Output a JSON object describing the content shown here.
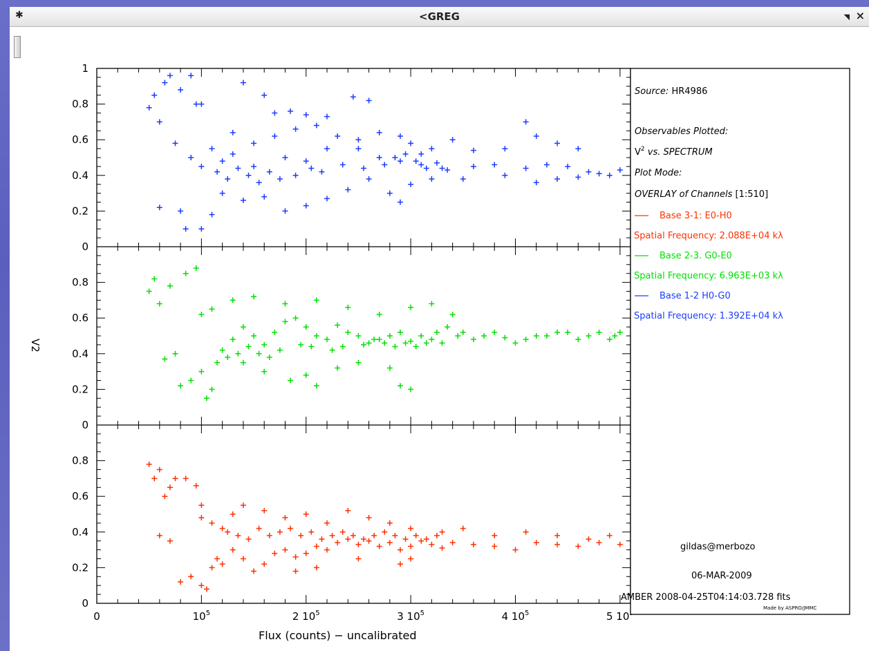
{
  "window": {
    "title": "<GREG",
    "pin_icon": "pin-icon",
    "menu_icon": "triangle-menu-icon",
    "close_icon": "close-icon"
  },
  "legend": {
    "source_label": "Source:",
    "source_value": "HR4986",
    "observables_label": "Observables Plotted:",
    "observables_v": "V",
    "observables_sup": "2",
    "observables_rest": " vs. SPECTRUM",
    "plot_mode_label": "Plot Mode:",
    "plot_mode_value": "OVERLAY of Channels",
    "channels": "[1:510]",
    "bases": [
      {
        "line": "Base 3-1: E0-H0",
        "freq": "Spatial Frequency: 2.088E+04 kλ",
        "color": "#ff3000"
      },
      {
        "line": "Base 2-3. G0-E0",
        "freq": "Spatial Frequency: 6.963E+03 kλ",
        "color": "#00e000"
      },
      {
        "line": "Base 1-2  H0-G0",
        "freq": "Spatial Frequency: 1.392E+04 kλ",
        "color": "#1a3cff"
      }
    ],
    "user": "gildas@merbozo",
    "date": "06-MAR-2009",
    "file": "AMBER 2008-04-25T04:14:03.728 fits",
    "credit": "Made by ASPRO/JMMC"
  },
  "chart_data": {
    "type": "scatter",
    "xlabel": "Flux (counts) − uncalibrated",
    "ylabel": "V2",
    "xlim": [
      0,
      510000
    ],
    "ylim": [
      0,
      1
    ],
    "x_tick_labels": [
      "0",
      "10",
      "2 10",
      "3 10",
      "4 10",
      "5 10"
    ],
    "x_tick_exponent": "5",
    "y_tick_labels": [
      "0",
      "0.2",
      "0.4",
      "0.6",
      "0.8",
      "1"
    ],
    "grid": false,
    "legend_position": "right",
    "panels": [
      {
        "name": "Base 1-2  H0-G0",
        "color": "#1a3cff",
        "points": [
          [
            50000,
            0.78
          ],
          [
            55000,
            0.85
          ],
          [
            60000,
            0.7
          ],
          [
            65000,
            0.92
          ],
          [
            70000,
            0.96
          ],
          [
            80000,
            0.88
          ],
          [
            90000,
            0.96
          ],
          [
            100000,
            0.8
          ],
          [
            140000,
            0.92
          ],
          [
            160000,
            0.85
          ],
          [
            95000,
            0.8
          ],
          [
            170000,
            0.75
          ],
          [
            75000,
            0.58
          ],
          [
            90000,
            0.5
          ],
          [
            110000,
            0.55
          ],
          [
            100000,
            0.45
          ],
          [
            120000,
            0.48
          ],
          [
            130000,
            0.52
          ],
          [
            150000,
            0.45
          ],
          [
            180000,
            0.5
          ],
          [
            200000,
            0.48
          ],
          [
            220000,
            0.55
          ],
          [
            250000,
            0.55
          ],
          [
            270000,
            0.5
          ],
          [
            290000,
            0.48
          ],
          [
            310000,
            0.46
          ],
          [
            330000,
            0.44
          ],
          [
            360000,
            0.45
          ],
          [
            380000,
            0.46
          ],
          [
            410000,
            0.44
          ],
          [
            430000,
            0.46
          ],
          [
            450000,
            0.45
          ],
          [
            470000,
            0.42
          ],
          [
            490000,
            0.4
          ],
          [
            500000,
            0.43
          ],
          [
            60000,
            0.22
          ],
          [
            80000,
            0.2
          ],
          [
            85000,
            0.1
          ],
          [
            100000,
            0.1
          ],
          [
            110000,
            0.18
          ],
          [
            120000,
            0.3
          ],
          [
            140000,
            0.26
          ],
          [
            160000,
            0.28
          ],
          [
            180000,
            0.2
          ],
          [
            200000,
            0.23
          ],
          [
            220000,
            0.27
          ],
          [
            240000,
            0.32
          ],
          [
            260000,
            0.38
          ],
          [
            280000,
            0.3
          ],
          [
            300000,
            0.35
          ],
          [
            290000,
            0.25
          ],
          [
            320000,
            0.38
          ],
          [
            350000,
            0.38
          ],
          [
            390000,
            0.4
          ],
          [
            420000,
            0.36
          ],
          [
            440000,
            0.38
          ],
          [
            460000,
            0.39
          ],
          [
            480000,
            0.41
          ],
          [
            230000,
            0.62
          ],
          [
            250000,
            0.6
          ],
          [
            270000,
            0.64
          ],
          [
            290000,
            0.62
          ],
          [
            300000,
            0.58
          ],
          [
            310000,
            0.52
          ],
          [
            320000,
            0.55
          ],
          [
            340000,
            0.6
          ],
          [
            360000,
            0.54
          ],
          [
            390000,
            0.55
          ],
          [
            420000,
            0.62
          ],
          [
            440000,
            0.58
          ],
          [
            460000,
            0.55
          ],
          [
            410000,
            0.7
          ],
          [
            185000,
            0.76
          ],
          [
            200000,
            0.74
          ],
          [
            220000,
            0.73
          ],
          [
            245000,
            0.84
          ],
          [
            260000,
            0.82
          ],
          [
            130000,
            0.64
          ],
          [
            150000,
            0.58
          ],
          [
            170000,
            0.62
          ],
          [
            190000,
            0.66
          ],
          [
            210000,
            0.68
          ],
          [
            115000,
            0.42
          ],
          [
            125000,
            0.38
          ],
          [
            135000,
            0.44
          ],
          [
            145000,
            0.4
          ],
          [
            155000,
            0.36
          ],
          [
            165000,
            0.42
          ],
          [
            175000,
            0.38
          ],
          [
            190000,
            0.4
          ],
          [
            205000,
            0.44
          ],
          [
            215000,
            0.42
          ],
          [
            235000,
            0.46
          ],
          [
            255000,
            0.44
          ],
          [
            275000,
            0.46
          ],
          [
            285000,
            0.5
          ],
          [
            295000,
            0.52
          ],
          [
            305000,
            0.48
          ],
          [
            315000,
            0.44
          ],
          [
            325000,
            0.47
          ],
          [
            335000,
            0.43
          ]
        ]
      },
      {
        "name": "Base 2-3. G0-E0",
        "color": "#00e000",
        "points": [
          [
            50000,
            0.75
          ],
          [
            55000,
            0.82
          ],
          [
            60000,
            0.68
          ],
          [
            70000,
            0.78
          ],
          [
            85000,
            0.85
          ],
          [
            95000,
            0.88
          ],
          [
            65000,
            0.37
          ],
          [
            75000,
            0.4
          ],
          [
            80000,
            0.22
          ],
          [
            90000,
            0.25
          ],
          [
            100000,
            0.3
          ],
          [
            105000,
            0.15
          ],
          [
            110000,
            0.2
          ],
          [
            120000,
            0.42
          ],
          [
            130000,
            0.48
          ],
          [
            140000,
            0.55
          ],
          [
            150000,
            0.5
          ],
          [
            160000,
            0.45
          ],
          [
            170000,
            0.52
          ],
          [
            180000,
            0.58
          ],
          [
            190000,
            0.6
          ],
          [
            200000,
            0.55
          ],
          [
            210000,
            0.5
          ],
          [
            220000,
            0.48
          ],
          [
            230000,
            0.56
          ],
          [
            240000,
            0.52
          ],
          [
            250000,
            0.5
          ],
          [
            260000,
            0.46
          ],
          [
            270000,
            0.48
          ],
          [
            280000,
            0.5
          ],
          [
            290000,
            0.52
          ],
          [
            300000,
            0.47
          ],
          [
            310000,
            0.5
          ],
          [
            320000,
            0.48
          ],
          [
            330000,
            0.46
          ],
          [
            350000,
            0.52
          ],
          [
            370000,
            0.5
          ],
          [
            390000,
            0.49
          ],
          [
            410000,
            0.48
          ],
          [
            430000,
            0.5
          ],
          [
            450000,
            0.52
          ],
          [
            470000,
            0.5
          ],
          [
            490000,
            0.48
          ],
          [
            500000,
            0.52
          ],
          [
            100000,
            0.62
          ],
          [
            110000,
            0.65
          ],
          [
            130000,
            0.7
          ],
          [
            150000,
            0.72
          ],
          [
            180000,
            0.68
          ],
          [
            210000,
            0.7
          ],
          [
            240000,
            0.66
          ],
          [
            270000,
            0.62
          ],
          [
            300000,
            0.66
          ],
          [
            320000,
            0.68
          ],
          [
            340000,
            0.62
          ],
          [
            140000,
            0.35
          ],
          [
            160000,
            0.3
          ],
          [
            200000,
            0.28
          ],
          [
            230000,
            0.32
          ],
          [
            250000,
            0.35
          ],
          [
            280000,
            0.32
          ],
          [
            290000,
            0.22
          ],
          [
            300000,
            0.2
          ],
          [
            210000,
            0.22
          ],
          [
            185000,
            0.25
          ],
          [
            115000,
            0.35
          ],
          [
            125000,
            0.38
          ],
          [
            135000,
            0.4
          ],
          [
            145000,
            0.44
          ],
          [
            155000,
            0.4
          ],
          [
            165000,
            0.38
          ],
          [
            175000,
            0.42
          ],
          [
            195000,
            0.45
          ],
          [
            205000,
            0.44
          ],
          [
            225000,
            0.42
          ],
          [
            235000,
            0.44
          ],
          [
            255000,
            0.45
          ],
          [
            265000,
            0.48
          ],
          [
            275000,
            0.46
          ],
          [
            285000,
            0.44
          ],
          [
            295000,
            0.46
          ],
          [
            305000,
            0.44
          ],
          [
            315000,
            0.46
          ],
          [
            325000,
            0.52
          ],
          [
            335000,
            0.55
          ],
          [
            345000,
            0.5
          ],
          [
            360000,
            0.48
          ],
          [
            380000,
            0.52
          ],
          [
            400000,
            0.46
          ],
          [
            420000,
            0.5
          ],
          [
            440000,
            0.52
          ],
          [
            460000,
            0.48
          ],
          [
            480000,
            0.52
          ],
          [
            495000,
            0.5
          ]
        ]
      },
      {
        "name": "Base 3-1: E0-H0",
        "color": "#ff3000",
        "points": [
          [
            50000,
            0.78
          ],
          [
            55000,
            0.7
          ],
          [
            60000,
            0.75
          ],
          [
            65000,
            0.6
          ],
          [
            70000,
            0.65
          ],
          [
            75000,
            0.7
          ],
          [
            85000,
            0.7
          ],
          [
            95000,
            0.66
          ],
          [
            100000,
            0.55
          ],
          [
            60000,
            0.38
          ],
          [
            70000,
            0.35
          ],
          [
            80000,
            0.12
          ],
          [
            90000,
            0.15
          ],
          [
            100000,
            0.1
          ],
          [
            105000,
            0.08
          ],
          [
            110000,
            0.2
          ],
          [
            115000,
            0.25
          ],
          [
            120000,
            0.22
          ],
          [
            130000,
            0.3
          ],
          [
            140000,
            0.25
          ],
          [
            150000,
            0.18
          ],
          [
            160000,
            0.22
          ],
          [
            170000,
            0.28
          ],
          [
            180000,
            0.3
          ],
          [
            190000,
            0.26
          ],
          [
            200000,
            0.28
          ],
          [
            210000,
            0.32
          ],
          [
            220000,
            0.3
          ],
          [
            230000,
            0.34
          ],
          [
            240000,
            0.36
          ],
          [
            250000,
            0.33
          ],
          [
            260000,
            0.35
          ],
          [
            270000,
            0.32
          ],
          [
            280000,
            0.34
          ],
          [
            290000,
            0.3
          ],
          [
            300000,
            0.32
          ],
          [
            310000,
            0.35
          ],
          [
            320000,
            0.33
          ],
          [
            330000,
            0.31
          ],
          [
            340000,
            0.34
          ],
          [
            360000,
            0.33
          ],
          [
            380000,
            0.32
          ],
          [
            400000,
            0.3
          ],
          [
            420000,
            0.34
          ],
          [
            440000,
            0.33
          ],
          [
            460000,
            0.32
          ],
          [
            480000,
            0.34
          ],
          [
            500000,
            0.33
          ],
          [
            100000,
            0.48
          ],
          [
            110000,
            0.45
          ],
          [
            120000,
            0.42
          ],
          [
            130000,
            0.5
          ],
          [
            140000,
            0.55
          ],
          [
            160000,
            0.52
          ],
          [
            180000,
            0.48
          ],
          [
            200000,
            0.5
          ],
          [
            220000,
            0.45
          ],
          [
            240000,
            0.52
          ],
          [
            260000,
            0.48
          ],
          [
            280000,
            0.45
          ],
          [
            300000,
            0.42
          ],
          [
            330000,
            0.4
          ],
          [
            350000,
            0.42
          ],
          [
            380000,
            0.38
          ],
          [
            410000,
            0.4
          ],
          [
            440000,
            0.38
          ],
          [
            470000,
            0.36
          ],
          [
            490000,
            0.38
          ],
          [
            125000,
            0.4
          ],
          [
            135000,
            0.38
          ],
          [
            145000,
            0.36
          ],
          [
            155000,
            0.42
          ],
          [
            165000,
            0.38
          ],
          [
            175000,
            0.4
          ],
          [
            185000,
            0.42
          ],
          [
            195000,
            0.38
          ],
          [
            205000,
            0.4
          ],
          [
            215000,
            0.36
          ],
          [
            225000,
            0.38
          ],
          [
            235000,
            0.4
          ],
          [
            245000,
            0.38
          ],
          [
            255000,
            0.36
          ],
          [
            265000,
            0.38
          ],
          [
            275000,
            0.4
          ],
          [
            285000,
            0.38
          ],
          [
            295000,
            0.36
          ],
          [
            305000,
            0.38
          ],
          [
            315000,
            0.36
          ],
          [
            325000,
            0.38
          ],
          [
            290000,
            0.22
          ],
          [
            300000,
            0.25
          ],
          [
            250000,
            0.25
          ],
          [
            210000,
            0.2
          ],
          [
            190000,
            0.18
          ]
        ]
      }
    ]
  }
}
